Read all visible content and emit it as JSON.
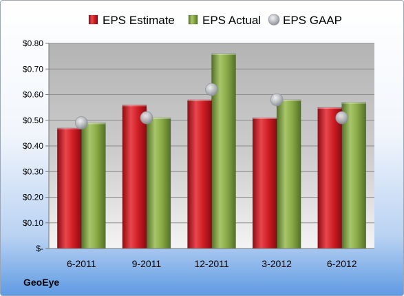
{
  "chart_data": {
    "type": "bar",
    "categories": [
      "6-2011",
      "9-2011",
      "12-2011",
      "3-2012",
      "6-2012"
    ],
    "series": [
      {
        "name": "EPS Estimate",
        "kind": "bar",
        "color": "#c0141c",
        "values": [
          0.47,
          0.56,
          0.58,
          0.51,
          0.55
        ]
      },
      {
        "name": "EPS Actual",
        "kind": "bar",
        "color": "#7f9f3a",
        "values": [
          0.49,
          0.51,
          0.76,
          0.58,
          0.57
        ]
      },
      {
        "name": "EPS GAAP",
        "kind": "marker",
        "color": "#b8bcc4",
        "values": [
          0.49,
          0.51,
          0.62,
          0.58,
          0.51
        ]
      }
    ],
    "y_ticks": [
      {
        "value": 0.0,
        "label": "$-"
      },
      {
        "value": 0.1,
        "label": "$0.10"
      },
      {
        "value": 0.2,
        "label": "$0.20"
      },
      {
        "value": 0.3,
        "label": "$0.30"
      },
      {
        "value": 0.4,
        "label": "$0.40"
      },
      {
        "value": 0.5,
        "label": "$0.50"
      },
      {
        "value": 0.6,
        "label": "$0.60"
      },
      {
        "value": 0.7,
        "label": "$0.70"
      },
      {
        "value": 0.8,
        "label": "$0.80"
      }
    ],
    "ylim": [
      0,
      0.8
    ],
    "grid": true,
    "legend_position": "top",
    "company": "GeoEye"
  }
}
